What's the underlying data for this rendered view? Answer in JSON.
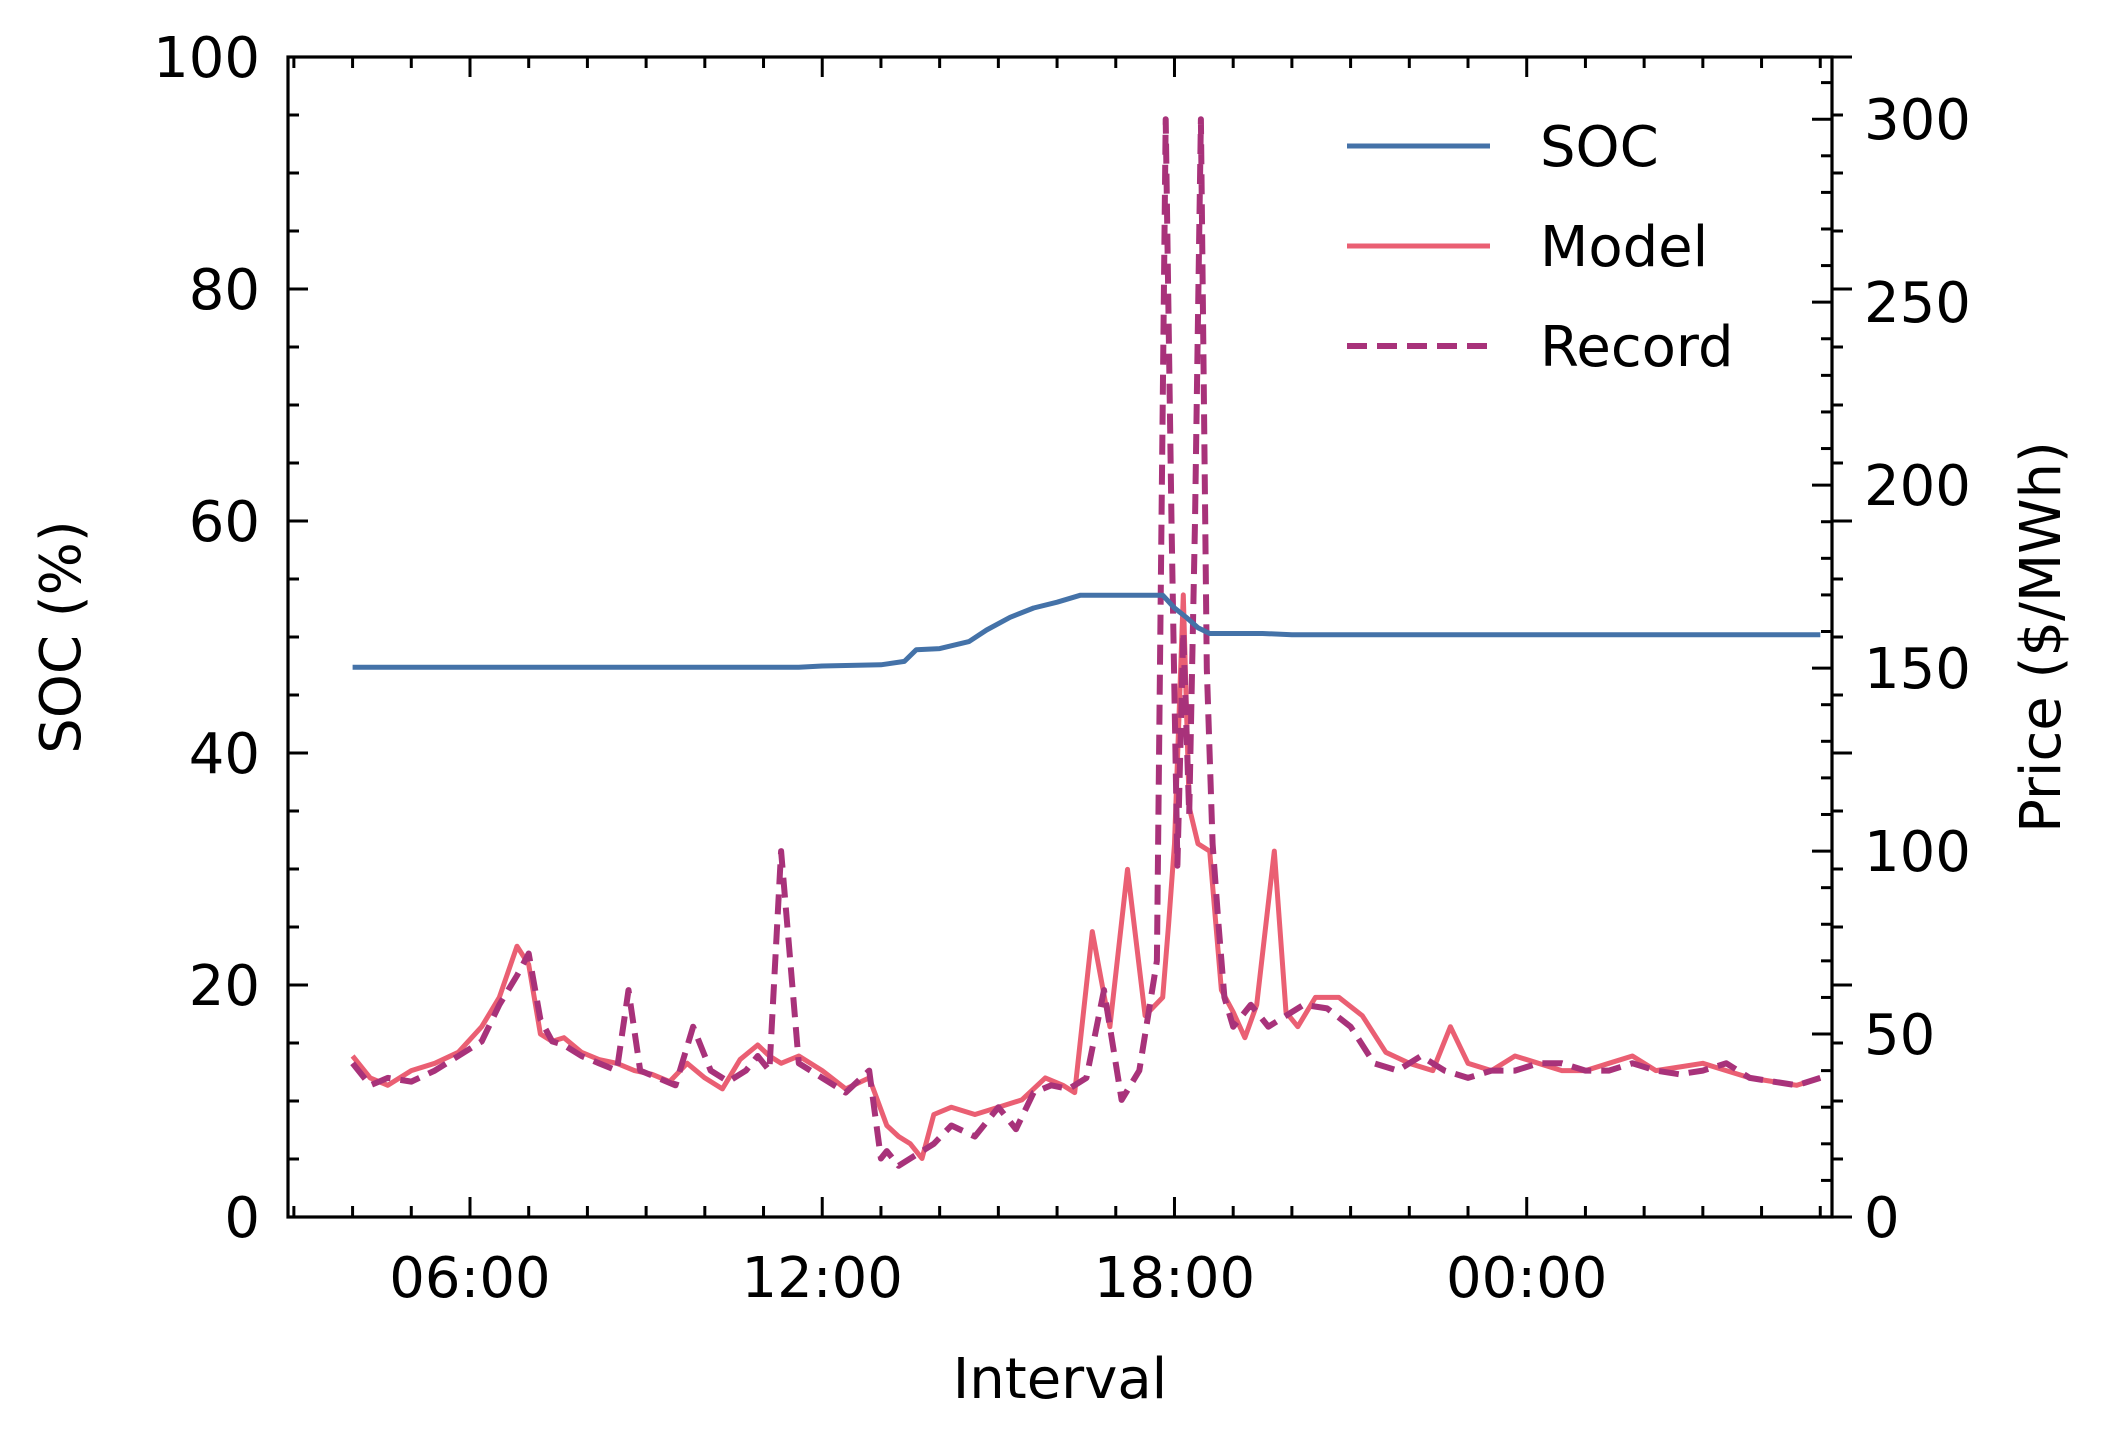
{
  "colors": {
    "soc": "#4472a8",
    "model": "#ea5f73",
    "record": "#a8327a"
  },
  "chart_data": {
    "type": "line",
    "xlabel": "Interval",
    "ylabel_left": "SOC (%)",
    "ylabel_right": "Price ($/MWh)",
    "x_unit": "hours since 00:00 of first day",
    "x_ticks": [
      {
        "x": 6,
        "label": "06:00"
      },
      {
        "x": 12,
        "label": "12:00"
      },
      {
        "x": 18,
        "label": "18:00"
      },
      {
        "x": 24,
        "label": "00:00"
      }
    ],
    "xlim": [
      2.9,
      29.2
    ],
    "ylim_left": [
      0,
      100
    ],
    "ylim_right": [
      0,
      317
    ],
    "yticks_left": [
      0,
      20,
      40,
      60,
      80,
      100
    ],
    "yticks_right": [
      0,
      50,
      100,
      150,
      200,
      250,
      300
    ],
    "legend": {
      "position": "top-right",
      "items": [
        "SOC",
        "Model",
        "Record"
      ]
    },
    "series": [
      {
        "name": "SOC",
        "axis": "left",
        "style": "solid",
        "x": [
          4.0,
          11.6,
          12.0,
          13.0,
          13.4,
          13.6,
          14.0,
          14.5,
          14.8,
          15.2,
          15.6,
          16.0,
          16.4,
          16.6,
          17.8,
          18.0,
          18.2,
          18.4,
          18.6,
          19.5,
          20.0,
          29.0
        ],
        "y": [
          47.4,
          47.4,
          47.5,
          47.6,
          47.9,
          48.9,
          49.0,
          49.6,
          50.6,
          51.7,
          52.5,
          53.0,
          53.6,
          53.6,
          53.6,
          52.5,
          51.7,
          50.8,
          50.3,
          50.3,
          50.2,
          50.2
        ]
      },
      {
        "name": "Model",
        "axis": "right",
        "style": "solid",
        "x": [
          4.0,
          4.3,
          4.6,
          5.0,
          5.4,
          5.8,
          6.2,
          6.5,
          6.8,
          7.0,
          7.2,
          7.4,
          7.6,
          7.9,
          8.2,
          8.5,
          8.8,
          9.1,
          9.4,
          9.7,
          10.0,
          10.3,
          10.6,
          10.9,
          11.1,
          11.3,
          11.6,
          12.0,
          12.4,
          12.8,
          13.1,
          13.3,
          13.5,
          13.7,
          13.9,
          14.2,
          14.6,
          15.0,
          15.4,
          15.8,
          16.1,
          16.3,
          16.6,
          16.9,
          17.2,
          17.5,
          17.8,
          17.9,
          18.0,
          18.15,
          18.25,
          18.4,
          18.6,
          18.8,
          19.0,
          19.2,
          19.4,
          19.7,
          19.9,
          20.1,
          20.4,
          20.8,
          21.2,
          21.6,
          22.0,
          22.4,
          22.7,
          23.0,
          23.4,
          23.8,
          24.2,
          24.6,
          25.0,
          25.4,
          25.8,
          26.2,
          26.6,
          27.0,
          27.4,
          27.8,
          28.2,
          28.6,
          29.0
        ],
        "y": [
          44,
          38,
          36,
          40,
          42,
          45,
          52,
          60,
          74,
          69,
          50,
          48,
          49,
          45,
          43,
          42,
          40,
          39,
          37,
          42,
          38,
          35,
          43,
          47,
          44,
          42,
          44,
          40,
          35,
          38,
          25,
          22,
          20,
          16,
          28,
          30,
          28,
          30,
          32,
          38,
          36,
          34,
          78,
          52,
          95,
          55,
          60,
          80,
          102,
          170,
          112,
          102,
          100,
          62,
          56,
          49,
          58,
          100,
          56,
          52,
          60,
          60,
          55,
          45,
          42,
          40,
          52,
          42,
          40,
          44,
          42,
          40,
          40,
          42,
          44,
          40,
          41,
          42,
          40,
          38,
          37,
          36,
          38
        ]
      },
      {
        "name": "Record",
        "axis": "right",
        "style": "dashed",
        "x": [
          4.0,
          4.3,
          4.6,
          5.0,
          5.4,
          5.8,
          6.2,
          6.5,
          6.8,
          7.0,
          7.2,
          7.4,
          7.6,
          7.9,
          8.2,
          8.5,
          8.7,
          8.9,
          9.2,
          9.5,
          9.8,
          10.1,
          10.4,
          10.7,
          10.9,
          11.1,
          11.3,
          11.6,
          12.0,
          12.4,
          12.8,
          13.0,
          13.1,
          13.3,
          13.6,
          13.9,
          14.2,
          14.6,
          15.0,
          15.3,
          15.6,
          15.9,
          16.2,
          16.5,
          16.8,
          17.1,
          17.4,
          17.7,
          17.85,
          17.95,
          18.05,
          18.15,
          18.25,
          18.35,
          18.45,
          18.55,
          18.65,
          18.75,
          18.85,
          19.0,
          19.3,
          19.6,
          19.9,
          20.2,
          20.6,
          21.0,
          21.4,
          21.8,
          22.2,
          22.6,
          23.0,
          23.4,
          23.8,
          24.2,
          24.6,
          25.0,
          25.4,
          25.8,
          26.2,
          26.6,
          27.0,
          27.4,
          27.8,
          28.2,
          28.6,
          29.0
        ],
        "y": [
          42,
          36,
          38,
          37,
          40,
          44,
          48,
          58,
          66,
          72,
          54,
          48,
          47,
          44,
          42,
          40,
          62,
          40,
          38,
          36,
          52,
          40,
          37,
          40,
          44,
          40,
          100,
          42,
          38,
          34,
          40,
          16,
          18,
          14,
          17,
          20,
          25,
          22,
          30,
          24,
          34,
          36,
          35,
          38,
          62,
          32,
          40,
          70,
          300,
          190,
          96,
          160,
          110,
          190,
          300,
          150,
          102,
          80,
          60,
          52,
          58,
          52,
          55,
          58,
          57,
          52,
          42,
          40,
          44,
          40,
          38,
          40,
          40,
          42,
          42,
          40,
          40,
          42,
          40,
          39,
          40,
          42,
          38,
          37,
          36,
          38
        ]
      }
    ]
  }
}
